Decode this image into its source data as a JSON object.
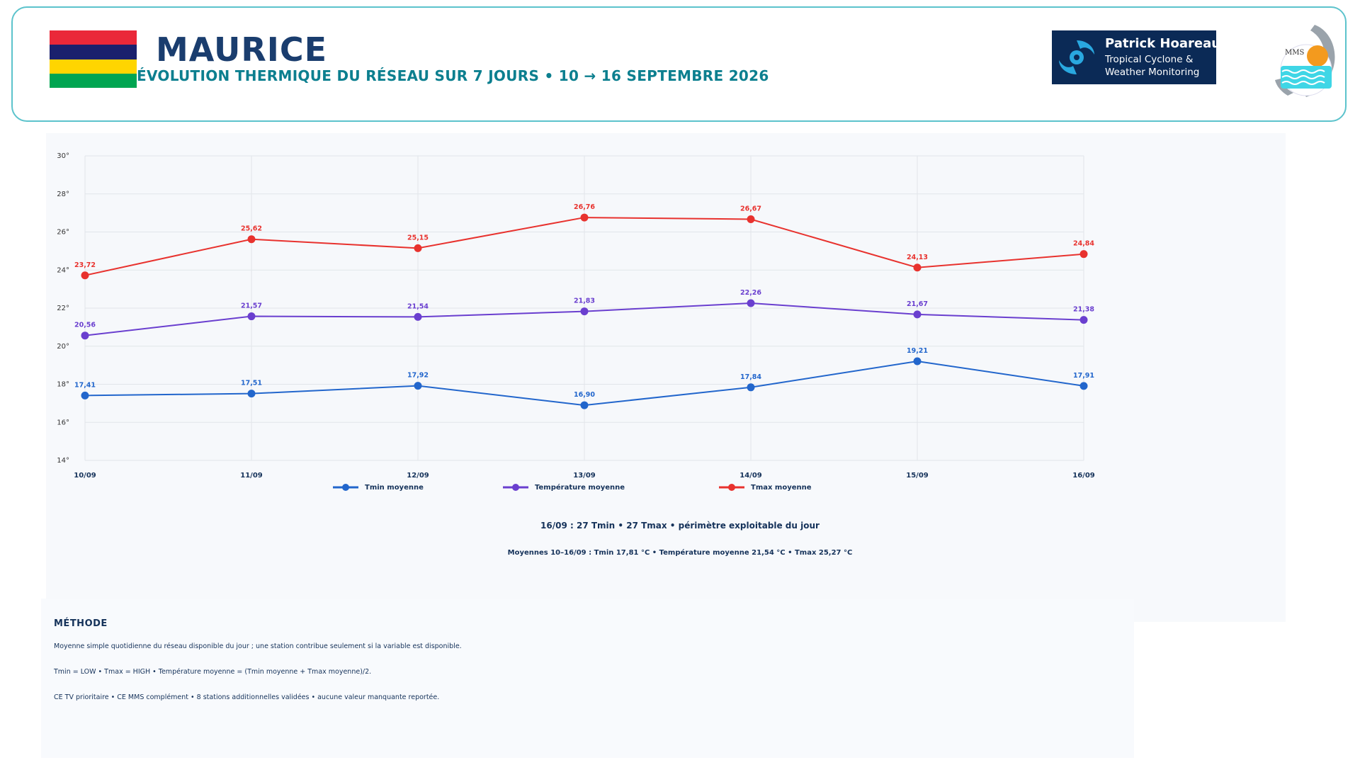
{
  "header": {
    "title": "MAURICE",
    "subtitle": "ÉVOLUTION THERMIQUE DU RÉSEAU SUR 7 JOURS  •  10 → 16 SEPTEMBRE 2026",
    "flag_colors": [
      "#ea2839",
      "#1a206d",
      "#ffd500",
      "#00a551"
    ],
    "brand_name": "Patrick Hoareau",
    "brand_tagline": "Tropical Cyclone & Weather Monitoring",
    "brand_icon": "cyclone-icon",
    "mms_logo_text": "MMS"
  },
  "chart_data": {
    "type": "line",
    "categories": [
      "10/09",
      "11/09",
      "12/09",
      "13/09",
      "14/09",
      "15/09",
      "16/09"
    ],
    "series": [
      {
        "name": "Tmin moyenne",
        "color": "#2266cc",
        "values": [
          17.41,
          17.51,
          17.92,
          16.9,
          17.84,
          19.21,
          17.91
        ],
        "labels": [
          "17,41",
          "17,51",
          "17,92",
          "16,90",
          "17,84",
          "19,21",
          "17,91"
        ]
      },
      {
        "name": "Température moyenne",
        "color": "#6a3fcf",
        "values": [
          20.56,
          21.57,
          21.54,
          21.83,
          22.26,
          21.67,
          21.38
        ],
        "labels": [
          "20,56",
          "21,57",
          "21,54",
          "21,83",
          "22,26",
          "21,67",
          "21,38"
        ]
      },
      {
        "name": "Tmax moyenne",
        "color": "#e8322e",
        "values": [
          23.72,
          25.62,
          25.15,
          26.76,
          26.67,
          24.13,
          24.84
        ],
        "labels": [
          "23,72",
          "25,62",
          "25,15",
          "26,76",
          "26,67",
          "24,13",
          "24,84"
        ]
      }
    ],
    "ylim": [
      14,
      30
    ],
    "yticks": [
      "14°",
      "16°",
      "18°",
      "20°",
      "22°",
      "24°",
      "26°",
      "28°",
      "30°"
    ],
    "grid": true,
    "legend_position": "bottom"
  },
  "summary": "16/09 : 27 Tmin • 27 Tmax • périmètre exploitable du jour",
  "averages": "Moyennes 10–16/09 : Tmin 17,81 °C • Température moyenne 21,54 °C • Tmax 25,27 °C",
  "method": {
    "title": "MÉTHODE",
    "lines": [
      "Moyenne simple quotidienne du réseau disponible du jour ; une station contribue seulement si la variable est disponible.",
      "Tmin = LOW • Tmax = HIGH • Température moyenne = (Tmin moyenne + Tmax moyenne)/2.",
      "CE TV prioritaire • CE MMS complément • 8 stations additionnelles validées • aucune valeur manquante reportée."
    ]
  }
}
